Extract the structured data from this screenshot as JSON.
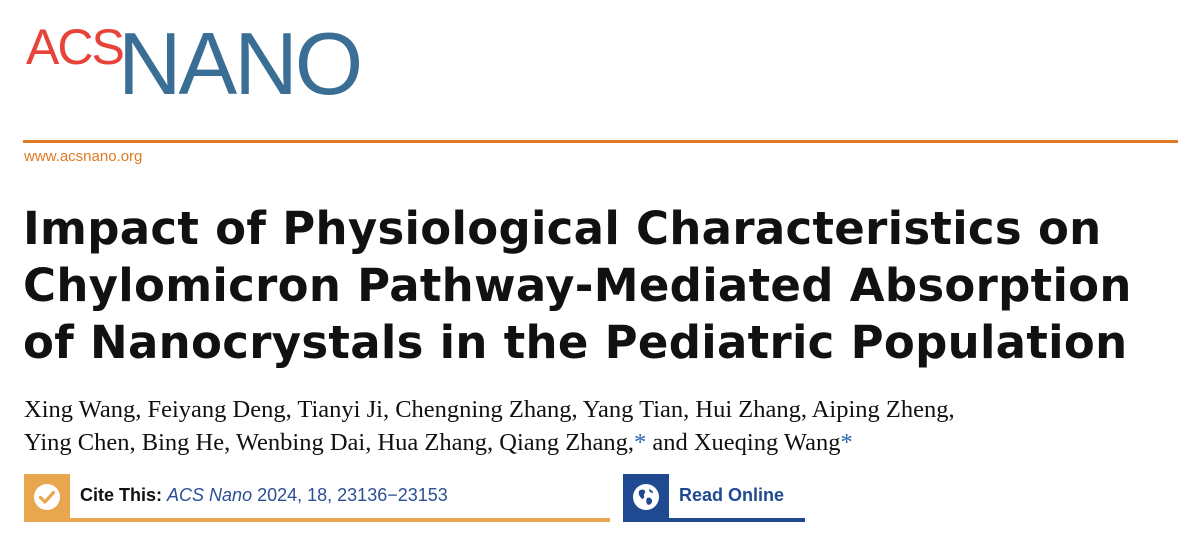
{
  "header": {
    "logo": {
      "text_acs": "ACS",
      "text_nano": "NANO",
      "acs_color": "#e8433a",
      "nano_color": "#3b6e95"
    },
    "site_url": "www.acsnano.org",
    "accent_color": "#e07a23"
  },
  "article": {
    "title_lines": [
      "Impact of Physiological Characteristics on",
      "Chylomicron Pathway-Mediated Absorption",
      "of Nanocrystals in the Pediatric Population"
    ],
    "authors_line1": "Xing Wang, Feiyang Deng, Tianyi Ji, Chengning Zhang, Yang Tian, Hui Zhang, Aiping Zheng,",
    "authors_line2_part1": "Ying Chen, Bing He, Wenbing Dai, Hua Zhang, Qiang Zhang,",
    "authors_line2_part2": " and Xueqing Wang",
    "corresponding_mark": "*"
  },
  "cite": {
    "label": "Cite This:",
    "journal": "ACS Nano",
    "details": "2024, 18, 23136−23153",
    "icon": "check-circle-icon",
    "color": "#e8a64e"
  },
  "read_online": {
    "label": "Read Online",
    "icon": "globe-icon",
    "color": "#1f4a92"
  }
}
